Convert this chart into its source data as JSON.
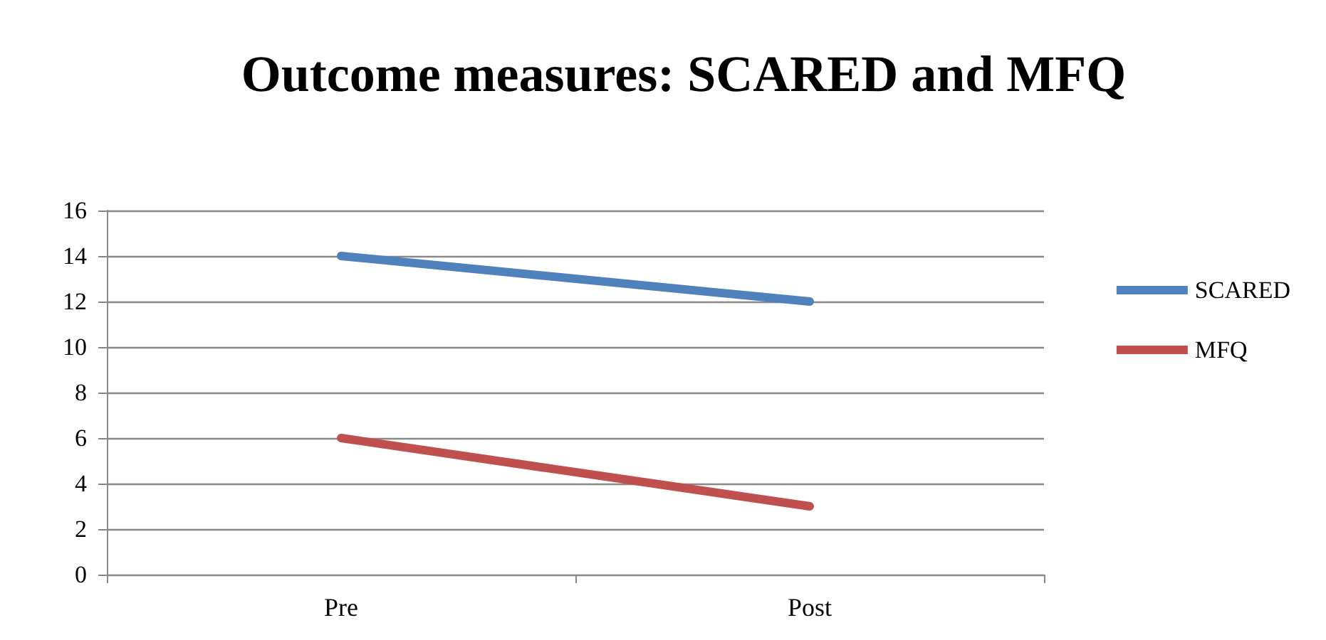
{
  "chart_data": {
    "type": "line",
    "title": "Outcome measures: SCARED and MFQ",
    "categories": [
      "Pre",
      "Post"
    ],
    "series": [
      {
        "name": "SCARED",
        "color": "#4f81bd",
        "values": [
          14,
          12
        ]
      },
      {
        "name": "MFQ",
        "color": "#c0504d",
        "values": [
          6,
          3
        ]
      }
    ],
    "ylim": [
      0,
      16
    ],
    "yticks": [
      0,
      2,
      4,
      6,
      8,
      10,
      12,
      14,
      16
    ],
    "grid": "y",
    "legend": "right",
    "marker": "none",
    "line_style": "solid"
  }
}
